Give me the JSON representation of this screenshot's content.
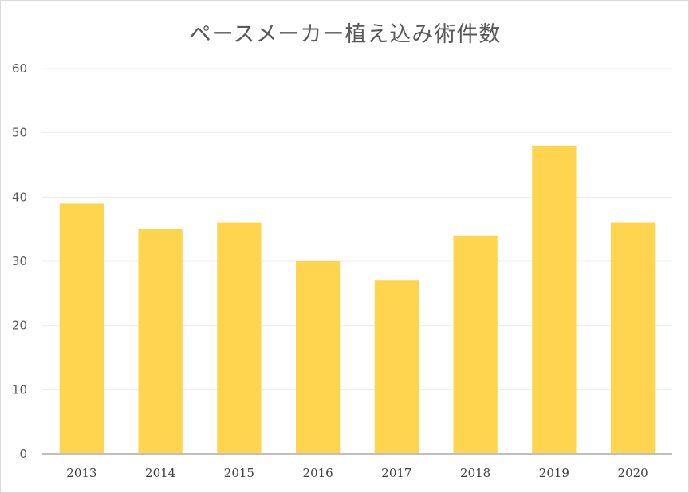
{
  "chart_data": {
    "type": "bar",
    "title": "ペースメーカー植え込み術件数",
    "categories": [
      "2013",
      "2014",
      "2015",
      "2016",
      "2017",
      "2018",
      "2019",
      "2020"
    ],
    "values": [
      39,
      35,
      36,
      30,
      27,
      34,
      48,
      36
    ],
    "ylim": [
      0,
      60
    ],
    "yticks": [
      0,
      10,
      20,
      30,
      40,
      50,
      60
    ],
    "grid": true,
    "legend": "none",
    "bar_color": "#FFD54F",
    "grid_color": "#EDEDED",
    "axis_color": "#BFBFBF"
  }
}
